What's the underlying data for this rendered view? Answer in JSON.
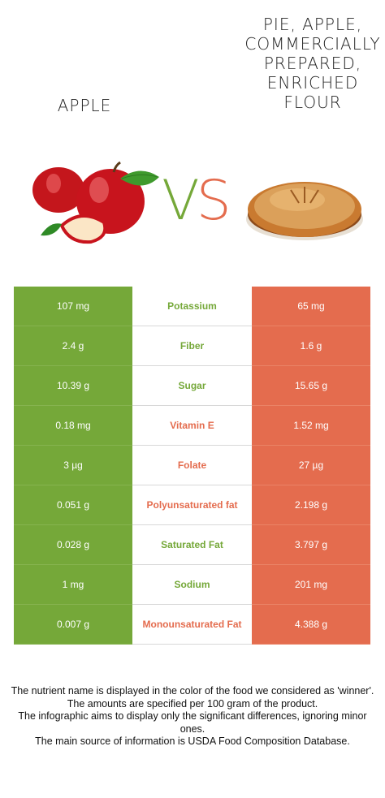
{
  "header": {
    "left_food": "Apple",
    "right_food": "Pie, apple, commercially prepared, enriched flour",
    "vs_v": "V",
    "vs_s": "S"
  },
  "colors": {
    "apple": "#75a839",
    "pie": "#e46c4e"
  },
  "rows": [
    {
      "left": "107 mg",
      "nutrient": "Potassium",
      "right": "65 mg",
      "winner": "apple"
    },
    {
      "left": "2.4 g",
      "nutrient": "Fiber",
      "right": "1.6 g",
      "winner": "apple"
    },
    {
      "left": "10.39 g",
      "nutrient": "Sugar",
      "right": "15.65 g",
      "winner": "apple"
    },
    {
      "left": "0.18 mg",
      "nutrient": "Vitamin E",
      "right": "1.52 mg",
      "winner": "pie"
    },
    {
      "left": "3 µg",
      "nutrient": "Folate",
      "right": "27 µg",
      "winner": "pie"
    },
    {
      "left": "0.051 g",
      "nutrient": "Polyunsaturated fat",
      "right": "2.198 g",
      "winner": "pie"
    },
    {
      "left": "0.028 g",
      "nutrient": "Saturated Fat",
      "right": "3.797 g",
      "winner": "apple"
    },
    {
      "left": "1 mg",
      "nutrient": "Sodium",
      "right": "201 mg",
      "winner": "apple"
    },
    {
      "left": "0.007 g",
      "nutrient": "Monounsaturated Fat",
      "right": "4.388 g",
      "winner": "pie"
    }
  ],
  "footnote": [
    "The nutrient name is displayed in the color of the food we considered as 'winner'.",
    "The amounts are specified per 100 gram of the product.",
    "The infographic aims to display only the significant differences, ignoring minor ones.",
    "The main source of information is USDA Food Composition Database."
  ]
}
